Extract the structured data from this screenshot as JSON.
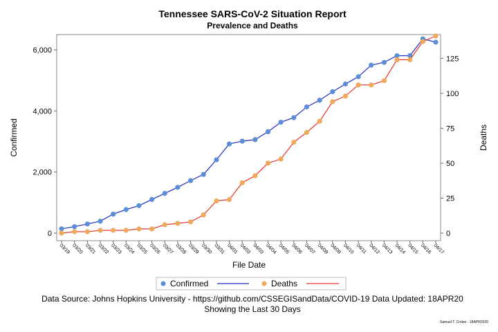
{
  "chart_data": {
    "type": "line",
    "title": "Tennessee SARS-CoV-2 Situation Report",
    "subtitle": "Prevalence and Deaths",
    "xlabel": "File Date",
    "ylabel_left": "Confirmed",
    "ylabel_right": "Deaths",
    "ylim_left": [
      0,
      6500
    ],
    "ylim_right": [
      0,
      142
    ],
    "yticks_left": [
      0,
      2000,
      4000,
      6000
    ],
    "yticks_left_labels": [
      "0",
      "2,000",
      "4,000",
      "6,000"
    ],
    "yticks_right": [
      0,
      25,
      50,
      75,
      100,
      125
    ],
    "grid": false,
    "legend_position": "bottom",
    "categories": [
      "03/19",
      "03/20",
      "03/21",
      "03/22",
      "03/23",
      "03/24",
      "03/25",
      "03/26",
      "03/27",
      "03/28",
      "03/29",
      "03/30",
      "03/31",
      "04/01",
      "04/02",
      "04/03",
      "04/04",
      "04/05",
      "04/06",
      "04/07",
      "04/08",
      "04/09",
      "04/10",
      "04/11",
      "04/12",
      "04/13",
      "04/14",
      "04/15",
      "04/16",
      "04/17"
    ],
    "series": [
      {
        "name": "Confirmed",
        "axis": "left",
        "marker_color": "#5b8ed6",
        "line_color": "#1f2fbf",
        "values": [
          140,
          210,
          300,
          390,
          620,
          770,
          900,
          1100,
          1300,
          1500,
          1720,
          1920,
          2400,
          2920,
          3010,
          3060,
          3320,
          3630,
          3780,
          4130,
          4350,
          4630,
          4880,
          5120,
          5500,
          5590,
          5810,
          5810,
          6360,
          6250
        ]
      },
      {
        "name": "Deaths",
        "axis": "right",
        "marker_color": "#f0a85a",
        "line_color": "#e8352a",
        "values": [
          0,
          1,
          1,
          2,
          2,
          2,
          3,
          3,
          6,
          7,
          8,
          13,
          23,
          24,
          36,
          41,
          50,
          53,
          65,
          72,
          80,
          94,
          98,
          106,
          106,
          109,
          124,
          124,
          137,
          141
        ]
      }
    ]
  },
  "footnote": {
    "line1": "Data Source: Johns Hopkins University - https://github.com/CSSEGISandData/COVID-19 Data Updated: 18APR20",
    "line2": "Showing the Last 30 Days"
  },
  "credit": "Samuel T. Croker - 18APR2020"
}
